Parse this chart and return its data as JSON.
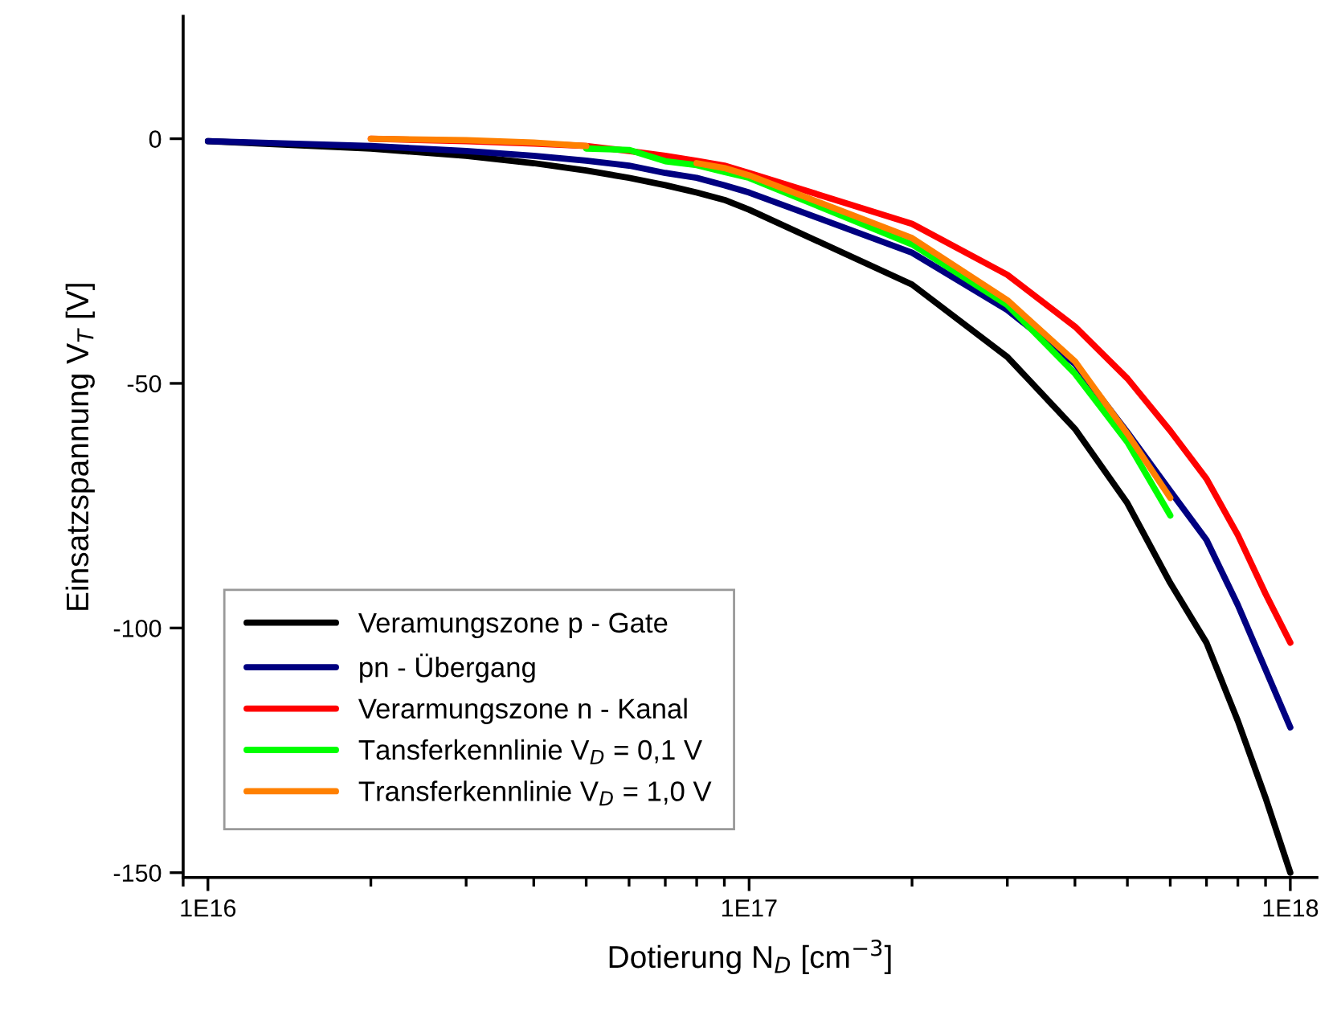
{
  "chart_data": {
    "type": "line",
    "xlabel": "Dotierung N$_{D}$ [cm$^{−3}$]",
    "ylabel": "Einsatzspannung V$_{T}$ [V]",
    "log": "x",
    "xlim": [
      9000000000000000.0,
      1.12e+18
    ],
    "ylim": [
      -151,
      25
    ],
    "xticks": [
      {
        "value": 1e+16,
        "label": "1E16"
      },
      {
        "value": 1e+17,
        "label": "1E17"
      },
      {
        "value": 1e+18,
        "label": "1E18"
      }
    ],
    "yticks": [
      -150,
      -100,
      -50,
      0
    ],
    "grid": false,
    "legend": "bottom left",
    "marker": "none",
    "line_style": "solid",
    "series": [
      {
        "name": "Veramungszone p - Gate",
        "color": "#000000",
        "x": [
          1e+16,
          2e+16,
          3e+16,
          4e+16,
          5e+16,
          6e+16,
          7e+16,
          8e+16,
          9e+16,
          1e+17,
          2e+17,
          3e+17,
          4e+17,
          5e+17,
          6e+17,
          7e+17,
          8e+17,
          9e+17,
          1e+18
        ],
        "values": [
          -0.5,
          -2,
          -3.5,
          -5,
          -6.5,
          -8,
          -9.5,
          -11,
          -12.5,
          -14.5,
          -29.8,
          -44.6,
          -59.3,
          -74.5,
          -90.8,
          -103,
          -119,
          -134.7,
          -150
        ]
      },
      {
        "name": "pn - Übergang",
        "color": "#000080",
        "x": [
          1e+16,
          2e+16,
          3e+16,
          4e+16,
          5e+16,
          6e+16,
          7e+16,
          8e+16,
          9e+16,
          1e+17,
          2e+17,
          3e+17,
          4e+17,
          5e+17,
          6e+17,
          7e+17,
          8e+17,
          9e+17,
          1e+18
        ],
        "values": [
          -0.5,
          -1.5,
          -2.5,
          -3.5,
          -4.5,
          -5.5,
          -7,
          -8,
          -9.5,
          -11,
          -23.3,
          -35,
          -46,
          -60,
          -72,
          -82,
          -95.3,
          -108.5,
          -120.3
        ]
      },
      {
        "name": "Verarmungszone n - Kanal",
        "color": "#ff0000",
        "x": [
          2e+16,
          3e+16,
          4e+16,
          5e+16,
          6e+16,
          7e+16,
          8e+16,
          9e+16,
          1e+17,
          2e+17,
          3e+17,
          4e+17,
          5e+17,
          6e+17,
          7e+17,
          8e+17,
          9e+17,
          1e+18
        ],
        "values": [
          0,
          -0.5,
          -1,
          -1.5,
          -2.5,
          -3.5,
          -4.5,
          -5.5,
          -7,
          -17.4,
          -27.8,
          -38.4,
          -49,
          -59.7,
          -69.5,
          -81,
          -93,
          -103
        ]
      },
      {
        "name": "Tansferkennlinie V$_{D}$ = 0,1 V",
        "color": "#00ff00",
        "x": [
          5e+16,
          6e+16,
          7e+16,
          8e+16,
          9e+16,
          1e+17,
          2e+17,
          3e+17,
          4e+17,
          5e+17,
          6e+17
        ],
        "values": [
          -2,
          -2.3,
          -4.6,
          -5.4,
          -6.8,
          -8,
          -21.6,
          -34,
          -48,
          -62,
          -77
        ]
      },
      {
        "name": "Transferkennlinie V$_{D}$ = 1,0 V",
        "color": "#ff8000",
        "x": [
          2e+16,
          3e+16,
          4e+16,
          5e+16,
          6e+16,
          7e+16,
          8e+16,
          9e+16,
          1e+17,
          2e+17,
          3e+17,
          4e+17,
          5e+17,
          6e+17
        ],
        "values": [
          0,
          -0.3,
          -0.8,
          -1.5,
          null,
          null,
          -5,
          -6,
          -7.5,
          -20.3,
          -33,
          -45.5,
          -60.3,
          -73.4
        ]
      }
    ]
  }
}
